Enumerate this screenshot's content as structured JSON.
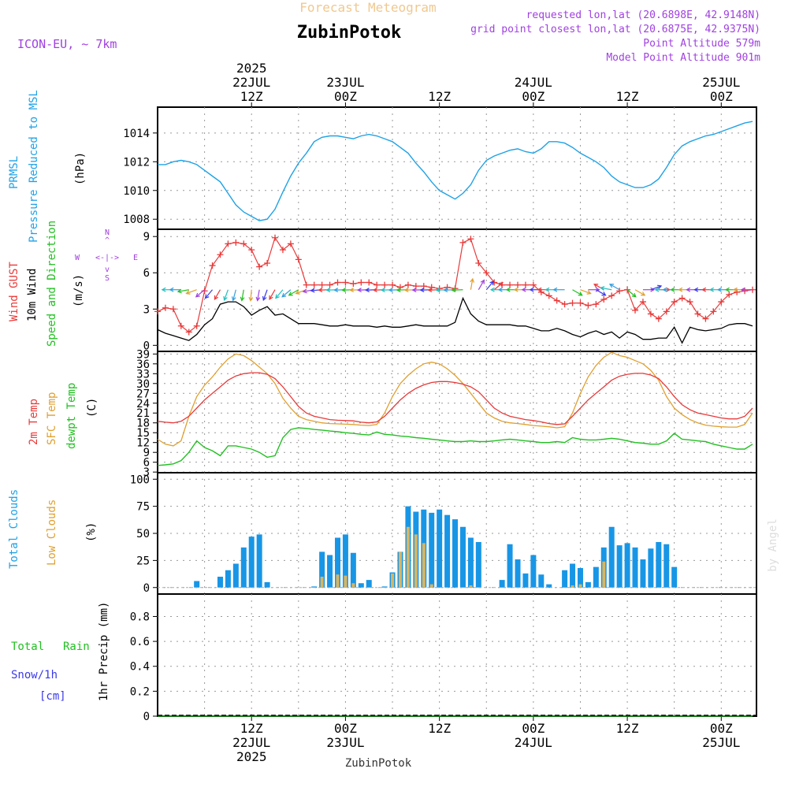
{
  "header": {
    "product": "Forecast Meteogram",
    "location": "ZubinPotok",
    "model": "ICON-EU, ~ 7km",
    "requested": "requested lon,lat (20.6898E, 42.9148N)",
    "model_point": "grid point closest lon,lat (20.6875E, 42.9375N)",
    "point_alt": "Point Altitude 579m",
    "model_alt": "Model Point Altitude 901m",
    "footer_location": "ZubinPotok",
    "watermark": "by Angel"
  },
  "colors": {
    "pressure": "#1fa2e6",
    "gust": "#e83a3a",
    "wind": "#000000",
    "temp": "#e83a3a",
    "sfc": "#e0a030",
    "dewpt": "#22c022",
    "total_clouds": "#1896e6",
    "low_clouds": "#d9b560",
    "rain": "#22c022",
    "snow": "#3a3ae8",
    "header_orange": "#f0c890",
    "info_purple": "#a040e0"
  },
  "top_axis": [
    {
      "h": 12,
      "lines": [
        "2025",
        "22JUL",
        "12Z"
      ]
    },
    {
      "h": 24,
      "lines": [
        "23JUL",
        "00Z"
      ]
    },
    {
      "h": 36,
      "lines": [
        "12Z"
      ]
    },
    {
      "h": 48,
      "lines": [
        "24JUL",
        "00Z"
      ]
    },
    {
      "h": 60,
      "lines": [
        "12Z"
      ]
    },
    {
      "h": 72,
      "lines": [
        "25JUL",
        "00Z"
      ]
    }
  ],
  "bottom_axis": [
    {
      "h": 12,
      "lines": [
        "12Z",
        "22JUL",
        "2025"
      ]
    },
    {
      "h": 24,
      "lines": [
        "00Z",
        "23JUL"
      ]
    },
    {
      "h": 36,
      "lines": [
        "12Z"
      ]
    },
    {
      "h": 48,
      "lines": [
        "00Z",
        "24JUL"
      ]
    },
    {
      "h": 60,
      "lines": [
        "12Z"
      ]
    },
    {
      "h": 72,
      "lines": [
        "00Z",
        "25JUL"
      ]
    }
  ],
  "panel_labels": {
    "p1": {
      "a": "PRMSL",
      "b": "Pressure Reduced to MSL",
      "unit": "(hPa)"
    },
    "p2": {
      "a": "Wind GUST",
      "b": "10m Wind",
      "c": "Speed and Direction",
      "unit": "(m/s)",
      "compass_n": "N",
      "compass_s": "S",
      "compass_w": "W",
      "compass_e": "E",
      "compass_h": "<-|->",
      "compass_v1": "^",
      "compass_v2": "v"
    },
    "p3": {
      "a": "2m Temp",
      "b": "SFC Temp",
      "c": "dewpt Temp",
      "unit": "(C)"
    },
    "p4": {
      "a": "Total Clouds",
      "b": "Low Clouds",
      "unit": "(%)"
    },
    "p5": {
      "a": "Total",
      "b": "Rain",
      "c": "Snow/1h",
      "d": "[cm]",
      "unit": "1hr Precip (mm)"
    }
  },
  "chart_data": [
    {
      "type": "line",
      "name": "pressure",
      "title": "PRMSL Pressure Reduced to MSL",
      "ylabel": "(hPa)",
      "ylim": [
        1007.3,
        1015.8
      ],
      "yticks": [
        1008,
        1010,
        1012,
        1014
      ],
      "x_hours": [
        0,
        1,
        2,
        3,
        4,
        5,
        6,
        7,
        8,
        9,
        10,
        11,
        12,
        13,
        14,
        15,
        16,
        17,
        18,
        19,
        20,
        21,
        22,
        23,
        24,
        25,
        26,
        27,
        28,
        29,
        30,
        31,
        32,
        33,
        34,
        35,
        36,
        37,
        38,
        39,
        40,
        41,
        42,
        43,
        44,
        45,
        46,
        47,
        48,
        49,
        50,
        51,
        52,
        53,
        54,
        55,
        56,
        57,
        58,
        59,
        60,
        61,
        62,
        63,
        64,
        65,
        66,
        67,
        68,
        69,
        70,
        71,
        72,
        73,
        74,
        75,
        76
      ],
      "values": [
        1011.8,
        1011.8,
        1012.0,
        1012.1,
        1012.0,
        1011.8,
        1011.4,
        1011.0,
        1010.6,
        1009.8,
        1009.0,
        1008.5,
        1008.2,
        1007.9,
        1008.0,
        1008.7,
        1009.9,
        1011.0,
        1011.9,
        1012.6,
        1013.4,
        1013.7,
        1013.8,
        1013.8,
        1013.7,
        1013.6,
        1013.8,
        1013.9,
        1013.8,
        1013.6,
        1013.4,
        1013.0,
        1012.6,
        1011.9,
        1011.3,
        1010.6,
        1010.0,
        1009.7,
        1009.4,
        1009.8,
        1010.4,
        1011.4,
        1012.1,
        1012.4,
        1012.6,
        1012.8,
        1012.9,
        1012.7,
        1012.6,
        1012.9,
        1013.4,
        1013.4,
        1013.3,
        1013.0,
        1012.6,
        1012.3,
        1012.0,
        1011.6,
        1011.0,
        1010.6,
        1010.4,
        1010.2,
        1010.2,
        1010.4,
        1010.8,
        1011.6,
        1012.5,
        1013.1,
        1013.4,
        1013.6,
        1013.8,
        1013.9,
        1014.1,
        1014.3,
        1014.5,
        1014.7,
        1014.8
      ]
    },
    {
      "type": "line",
      "name": "wind",
      "title": "Wind GUST / 10m Wind Speed and Direction",
      "ylabel": "(m/s)",
      "ylim": [
        -0.5,
        9.6
      ],
      "yticks": [
        0,
        3,
        6,
        9
      ],
      "gust_hours": [
        0,
        1,
        2,
        3,
        4,
        5,
        6,
        7,
        8,
        9,
        10,
        11,
        12,
        13,
        14,
        15,
        16,
        17,
        18,
        19,
        20,
        21,
        22,
        23,
        24,
        25,
        26,
        27,
        28,
        29,
        30,
        31,
        32,
        33,
        34,
        35,
        36,
        37,
        38,
        39,
        40,
        41,
        42,
        43,
        44,
        45,
        46,
        47,
        48,
        49,
        50,
        51,
        52,
        53,
        54,
        55,
        56,
        57,
        58,
        59,
        60,
        61,
        62,
        63,
        64,
        65,
        66,
        67,
        68,
        69,
        70,
        71,
        72,
        73,
        74,
        75,
        76
      ],
      "gust": [
        2.8,
        3.1,
        3.0,
        1.6,
        1.1,
        1.6,
        4.5,
        6.6,
        7.5,
        8.4,
        8.5,
        8.4,
        7.9,
        6.5,
        6.8,
        8.9,
        7.9,
        8.4,
        7.1,
        5.0,
        5.0,
        5.0,
        5.0,
        5.2,
        5.2,
        5.1,
        5.2,
        5.2,
        5.0,
        5.0,
        5.0,
        4.8,
        5.0,
        4.9,
        4.9,
        4.8,
        4.7,
        4.8,
        4.7,
        8.5,
        8.8,
        6.8,
        6.0,
        5.2,
        5.0,
        5.0,
        5.0,
        5.0,
        5.0,
        4.4,
        4.1,
        3.7,
        3.4,
        3.5,
        3.5,
        3.3,
        3.4,
        3.8,
        4.1,
        4.5,
        4.6,
        2.9,
        3.6,
        2.6,
        2.2,
        2.8,
        3.6,
        3.9,
        3.6,
        2.6,
        2.2,
        2.8,
        3.6,
        4.2,
        4.4,
        4.5,
        4.6
      ],
      "speed_hours": [
        0,
        1,
        2,
        3,
        4,
        5,
        6,
        7,
        8,
        9,
        10,
        11,
        12,
        13,
        14,
        15,
        16,
        17,
        18,
        19,
        20,
        21,
        22,
        23,
        24,
        25,
        26,
        27,
        28,
        29,
        30,
        31,
        32,
        33,
        34,
        35,
        36,
        37,
        38,
        39,
        40,
        41,
        42,
        43,
        44,
        45,
        46,
        47,
        48,
        49,
        50,
        51,
        52,
        53,
        54,
        55,
        56,
        57,
        58,
        59,
        60,
        61,
        62,
        63,
        64,
        65,
        66,
        67,
        68,
        69,
        70,
        71,
        72,
        73,
        74,
        75,
        76
      ],
      "speed": [
        1.3,
        1.0,
        0.8,
        0.6,
        0.4,
        0.9,
        1.7,
        2.2,
        3.4,
        3.6,
        3.6,
        3.2,
        2.5,
        2.9,
        3.2,
        2.5,
        2.6,
        2.2,
        1.8,
        1.8,
        1.8,
        1.7,
        1.6,
        1.6,
        1.7,
        1.6,
        1.6,
        1.6,
        1.5,
        1.6,
        1.5,
        1.5,
        1.6,
        1.7,
        1.6,
        1.6,
        1.6,
        1.6,
        1.9,
        3.9,
        2.6,
        2.0,
        1.7,
        1.7,
        1.7,
        1.7,
        1.6,
        1.6,
        1.4,
        1.2,
        1.2,
        1.4,
        1.2,
        0.9,
        0.7,
        1.0,
        1.2,
        0.9,
        1.1,
        0.6,
        1.1,
        0.9,
        0.5,
        0.5,
        0.6,
        0.6,
        1.5,
        0.2,
        1.5,
        1.3,
        1.2,
        1.3,
        1.4,
        1.7,
        1.8,
        1.8,
        1.6
      ],
      "arrow_hours": [
        2,
        3,
        4,
        5,
        6,
        7,
        8,
        9,
        10,
        11,
        12,
        13,
        14,
        15,
        16,
        17,
        18,
        19,
        20,
        21,
        22,
        23,
        24,
        25,
        26,
        27,
        28,
        29,
        30,
        31,
        32,
        33,
        34,
        35,
        36,
        37,
        38,
        39,
        40,
        41,
        42,
        43,
        44,
        45,
        46,
        47,
        48,
        49,
        50,
        51,
        52,
        53,
        54,
        55,
        56,
        57,
        58,
        59,
        60,
        61,
        62,
        63,
        64,
        65,
        66,
        67,
        68,
        69,
        70,
        71,
        72,
        73,
        74,
        75,
        76
      ],
      "arrow_dir_deg": [
        270,
        270,
        260,
        250,
        230,
        220,
        210,
        200,
        195,
        190,
        185,
        190,
        200,
        210,
        220,
        230,
        240,
        250,
        260,
        265,
        268,
        268,
        268,
        268,
        268,
        268,
        268,
        268,
        268,
        268,
        268,
        268,
        268,
        268,
        268,
        268,
        268,
        268,
        10,
        30,
        40,
        50,
        270,
        270,
        270,
        270,
        270,
        270,
        270,
        270,
        270,
        120,
        110,
        90,
        120,
        300,
        280,
        300,
        130,
        120,
        90,
        70,
        90,
        270,
        270,
        270,
        270,
        270,
        270,
        270,
        270,
        270,
        270,
        270,
        270
      ]
    },
    {
      "type": "line",
      "name": "temperature",
      "title": "2m Temp / SFC Temp / dewpt Temp",
      "ylabel": "(C)",
      "ylim": [
        2.8,
        39.8
      ],
      "yticks": [
        3,
        6,
        9,
        12,
        15,
        18,
        21,
        24,
        27,
        30,
        33,
        36,
        39
      ],
      "x_hours": [
        0,
        1,
        2,
        3,
        4,
        5,
        6,
        7,
        8,
        9,
        10,
        11,
        12,
        13,
        14,
        15,
        16,
        17,
        18,
        19,
        20,
        21,
        22,
        23,
        24,
        25,
        26,
        27,
        28,
        29,
        30,
        31,
        32,
        33,
        34,
        35,
        36,
        37,
        38,
        39,
        40,
        41,
        42,
        43,
        44,
        45,
        46,
        47,
        48,
        49,
        50,
        51,
        52,
        53,
        54,
        55,
        56,
        57,
        58,
        59,
        60,
        61,
        62,
        63,
        64,
        65,
        66,
        67,
        68,
        69,
        70,
        71,
        72,
        73,
        74,
        75,
        76
      ],
      "t2m": [
        18.5,
        18.2,
        18.0,
        18.5,
        20.0,
        22.5,
        25.0,
        27.0,
        29.0,
        31.0,
        32.3,
        33.0,
        33.3,
        33.3,
        32.8,
        31.5,
        29.0,
        26.0,
        23.0,
        21.0,
        20.0,
        19.5,
        19.0,
        18.8,
        18.7,
        18.6,
        18.2,
        18.0,
        18.3,
        20.0,
        22.5,
        25.0,
        27.0,
        28.5,
        29.6,
        30.3,
        30.6,
        30.6,
        30.3,
        29.8,
        29.0,
        27.5,
        25.0,
        22.5,
        21.0,
        20.0,
        19.5,
        19.0,
        18.7,
        18.3,
        17.8,
        17.5,
        17.7,
        20.0,
        22.5,
        25.0,
        27.0,
        29.0,
        31.0,
        32.2,
        32.8,
        33.1,
        33.1,
        32.6,
        31.5,
        29.0,
        26.0,
        23.5,
        22.0,
        21.0,
        20.5,
        20.0,
        19.5,
        19.2,
        19.2,
        20.0,
        22.5
      ],
      "sfc": [
        13.0,
        11.5,
        11.0,
        12.5,
        20.0,
        26.0,
        29.5,
        32.0,
        35.0,
        37.5,
        39.0,
        38.5,
        37.0,
        35.0,
        33.0,
        30.0,
        25.5,
        22.5,
        20.0,
        19.0,
        18.5,
        18.0,
        17.8,
        17.7,
        17.6,
        17.5,
        17.3,
        17.2,
        17.5,
        21.0,
        26.0,
        30.0,
        32.5,
        34.5,
        36.0,
        36.5,
        36.0,
        34.5,
        32.5,
        30.0,
        27.0,
        24.0,
        21.0,
        19.5,
        18.5,
        18.0,
        17.8,
        17.5,
        17.2,
        17.0,
        16.8,
        16.5,
        16.8,
        21.0,
        27.0,
        32.0,
        35.5,
        38.0,
        39.5,
        38.5,
        38.0,
        37.0,
        36.0,
        34.0,
        31.0,
        26.0,
        22.5,
        20.5,
        19.0,
        18.0,
        17.3,
        17.0,
        16.8,
        16.7,
        16.7,
        17.5,
        21.0
      ],
      "dewpt": [
        5.0,
        5.2,
        5.5,
        6.5,
        9.0,
        12.5,
        10.5,
        9.5,
        8.0,
        11.0,
        11.0,
        10.5,
        10.0,
        9.0,
        7.5,
        8.0,
        13.5,
        16.0,
        16.5,
        16.3,
        16.0,
        15.8,
        15.5,
        15.3,
        15.0,
        14.8,
        14.5,
        14.3,
        15.2,
        14.5,
        14.3,
        14.0,
        13.8,
        13.5,
        13.3,
        13.0,
        12.8,
        12.5,
        12.3,
        12.3,
        12.5,
        12.3,
        12.3,
        12.5,
        12.8,
        13.0,
        12.8,
        12.5,
        12.3,
        12.0,
        12.0,
        12.3,
        12.0,
        13.5,
        13.0,
        12.8,
        12.8,
        13.0,
        13.3,
        13.0,
        12.5,
        12.0,
        11.8,
        11.5,
        11.5,
        12.5,
        14.8,
        13.0,
        12.8,
        12.5,
        12.3,
        11.5,
        11.0,
        10.5,
        10.0,
        10.0,
        11.5
      ]
    },
    {
      "type": "bar",
      "name": "clouds",
      "title": "Total Clouds / Low Clouds",
      "ylabel": "(%)",
      "ylim": [
        -6,
        106
      ],
      "yticks": [
        0,
        25,
        50,
        75,
        100
      ],
      "x_hours": [
        0,
        1,
        2,
        3,
        4,
        5,
        6,
        7,
        8,
        9,
        10,
        11,
        12,
        13,
        14,
        15,
        16,
        17,
        18,
        19,
        20,
        21,
        22,
        23,
        24,
        25,
        26,
        27,
        28,
        29,
        30,
        31,
        32,
        33,
        34,
        35,
        36,
        37,
        38,
        39,
        40,
        41,
        42,
        43,
        44,
        45,
        46,
        47,
        48,
        49,
        50,
        51,
        52,
        53,
        54,
        55,
        56,
        57,
        58,
        59,
        60,
        61,
        62,
        63,
        64,
        65,
        66,
        67,
        68,
        69,
        70,
        71,
        72,
        73,
        74,
        75,
        76
      ],
      "total": [
        0,
        0,
        0,
        0,
        0,
        6,
        0,
        0,
        10,
        16,
        22,
        37,
        47,
        49,
        5,
        0,
        0,
        0,
        0,
        0,
        1,
        33,
        30,
        46,
        49,
        32,
        4,
        7,
        0,
        1,
        14,
        33,
        75,
        70,
        72,
        69,
        72,
        67,
        63,
        56,
        46,
        42,
        0,
        0,
        7,
        40,
        26,
        13,
        30,
        12,
        3,
        0,
        16,
        22,
        18,
        5,
        19,
        37,
        56,
        39,
        41,
        37,
        26,
        36,
        42,
        40,
        19,
        0,
        0,
        0,
        0,
        0,
        0,
        0,
        0,
        0,
        0
      ],
      "low": [
        0,
        0,
        0,
        0,
        0,
        0,
        0,
        0,
        0,
        0,
        0,
        0,
        0,
        0,
        0,
        0,
        0,
        0,
        0,
        0,
        0,
        10,
        0,
        12,
        11,
        4,
        0,
        0,
        0,
        0,
        13,
        33,
        56,
        49,
        41,
        3,
        0,
        0,
        0,
        0,
        2,
        0,
        0,
        0,
        0,
        0,
        0,
        0,
        0,
        0,
        0,
        0,
        0,
        2,
        3,
        0,
        0,
        24,
        0,
        0,
        0,
        0,
        0,
        0,
        0,
        0,
        0,
        0,
        0,
        0,
        0,
        0,
        0,
        0,
        0,
        0,
        0
      ]
    },
    {
      "type": "bar",
      "name": "precipitation",
      "title": "Total Rain / Snow/1h",
      "ylabel": "1hr Precip (mm)",
      "ylim": [
        0,
        0.98
      ],
      "yticks": [
        0,
        0.2,
        0.4,
        0.6,
        0.8
      ],
      "x_hours": [
        0,
        12,
        24,
        36,
        48,
        60,
        72,
        76
      ],
      "rain": [
        0,
        0,
        0,
        0,
        0,
        0,
        0,
        0
      ],
      "snow": [
        0,
        0,
        0,
        0,
        0,
        0,
        0,
        0
      ]
    }
  ]
}
